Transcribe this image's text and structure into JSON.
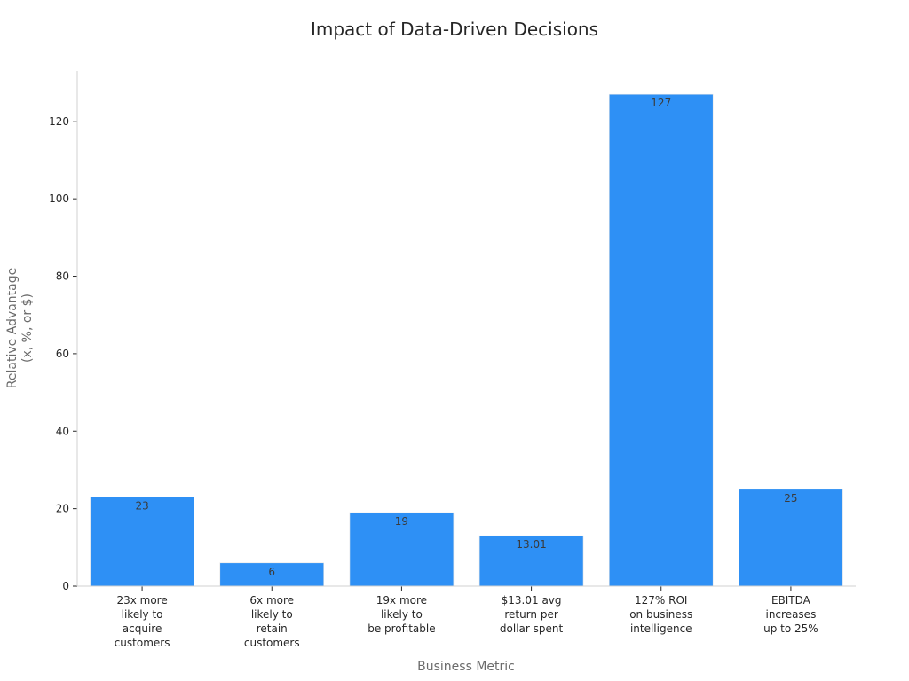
{
  "chart_data": {
    "type": "bar",
    "title": "Impact of Data-Driven Decisions",
    "xlabel": "Business Metric",
    "ylabel": [
      "Relative Advantage",
      "(x, %, or $)"
    ],
    "ylim": [
      0,
      133
    ],
    "yticks": [
      0,
      20,
      40,
      60,
      80,
      100,
      120
    ],
    "categories": [
      [
        "23x more",
        "likely to",
        "acquire",
        "customers"
      ],
      [
        "6x more",
        "likely to",
        "retain",
        "customers"
      ],
      [
        "19x more",
        "likely to",
        "be profitable"
      ],
      [
        "$13.01 avg",
        "return per",
        "dollar spent"
      ],
      [
        "127% ROI",
        "on business",
        "intelligence"
      ],
      [
        "EBITDA",
        "increases",
        "up to 25%"
      ]
    ],
    "values": [
      23,
      6,
      19,
      13.01,
      127,
      25
    ],
    "data_labels": [
      "23",
      "6",
      "19",
      "13.01",
      "127",
      "25"
    ],
    "bar_color": "#2e90f5",
    "grid": false,
    "legend": "none"
  }
}
